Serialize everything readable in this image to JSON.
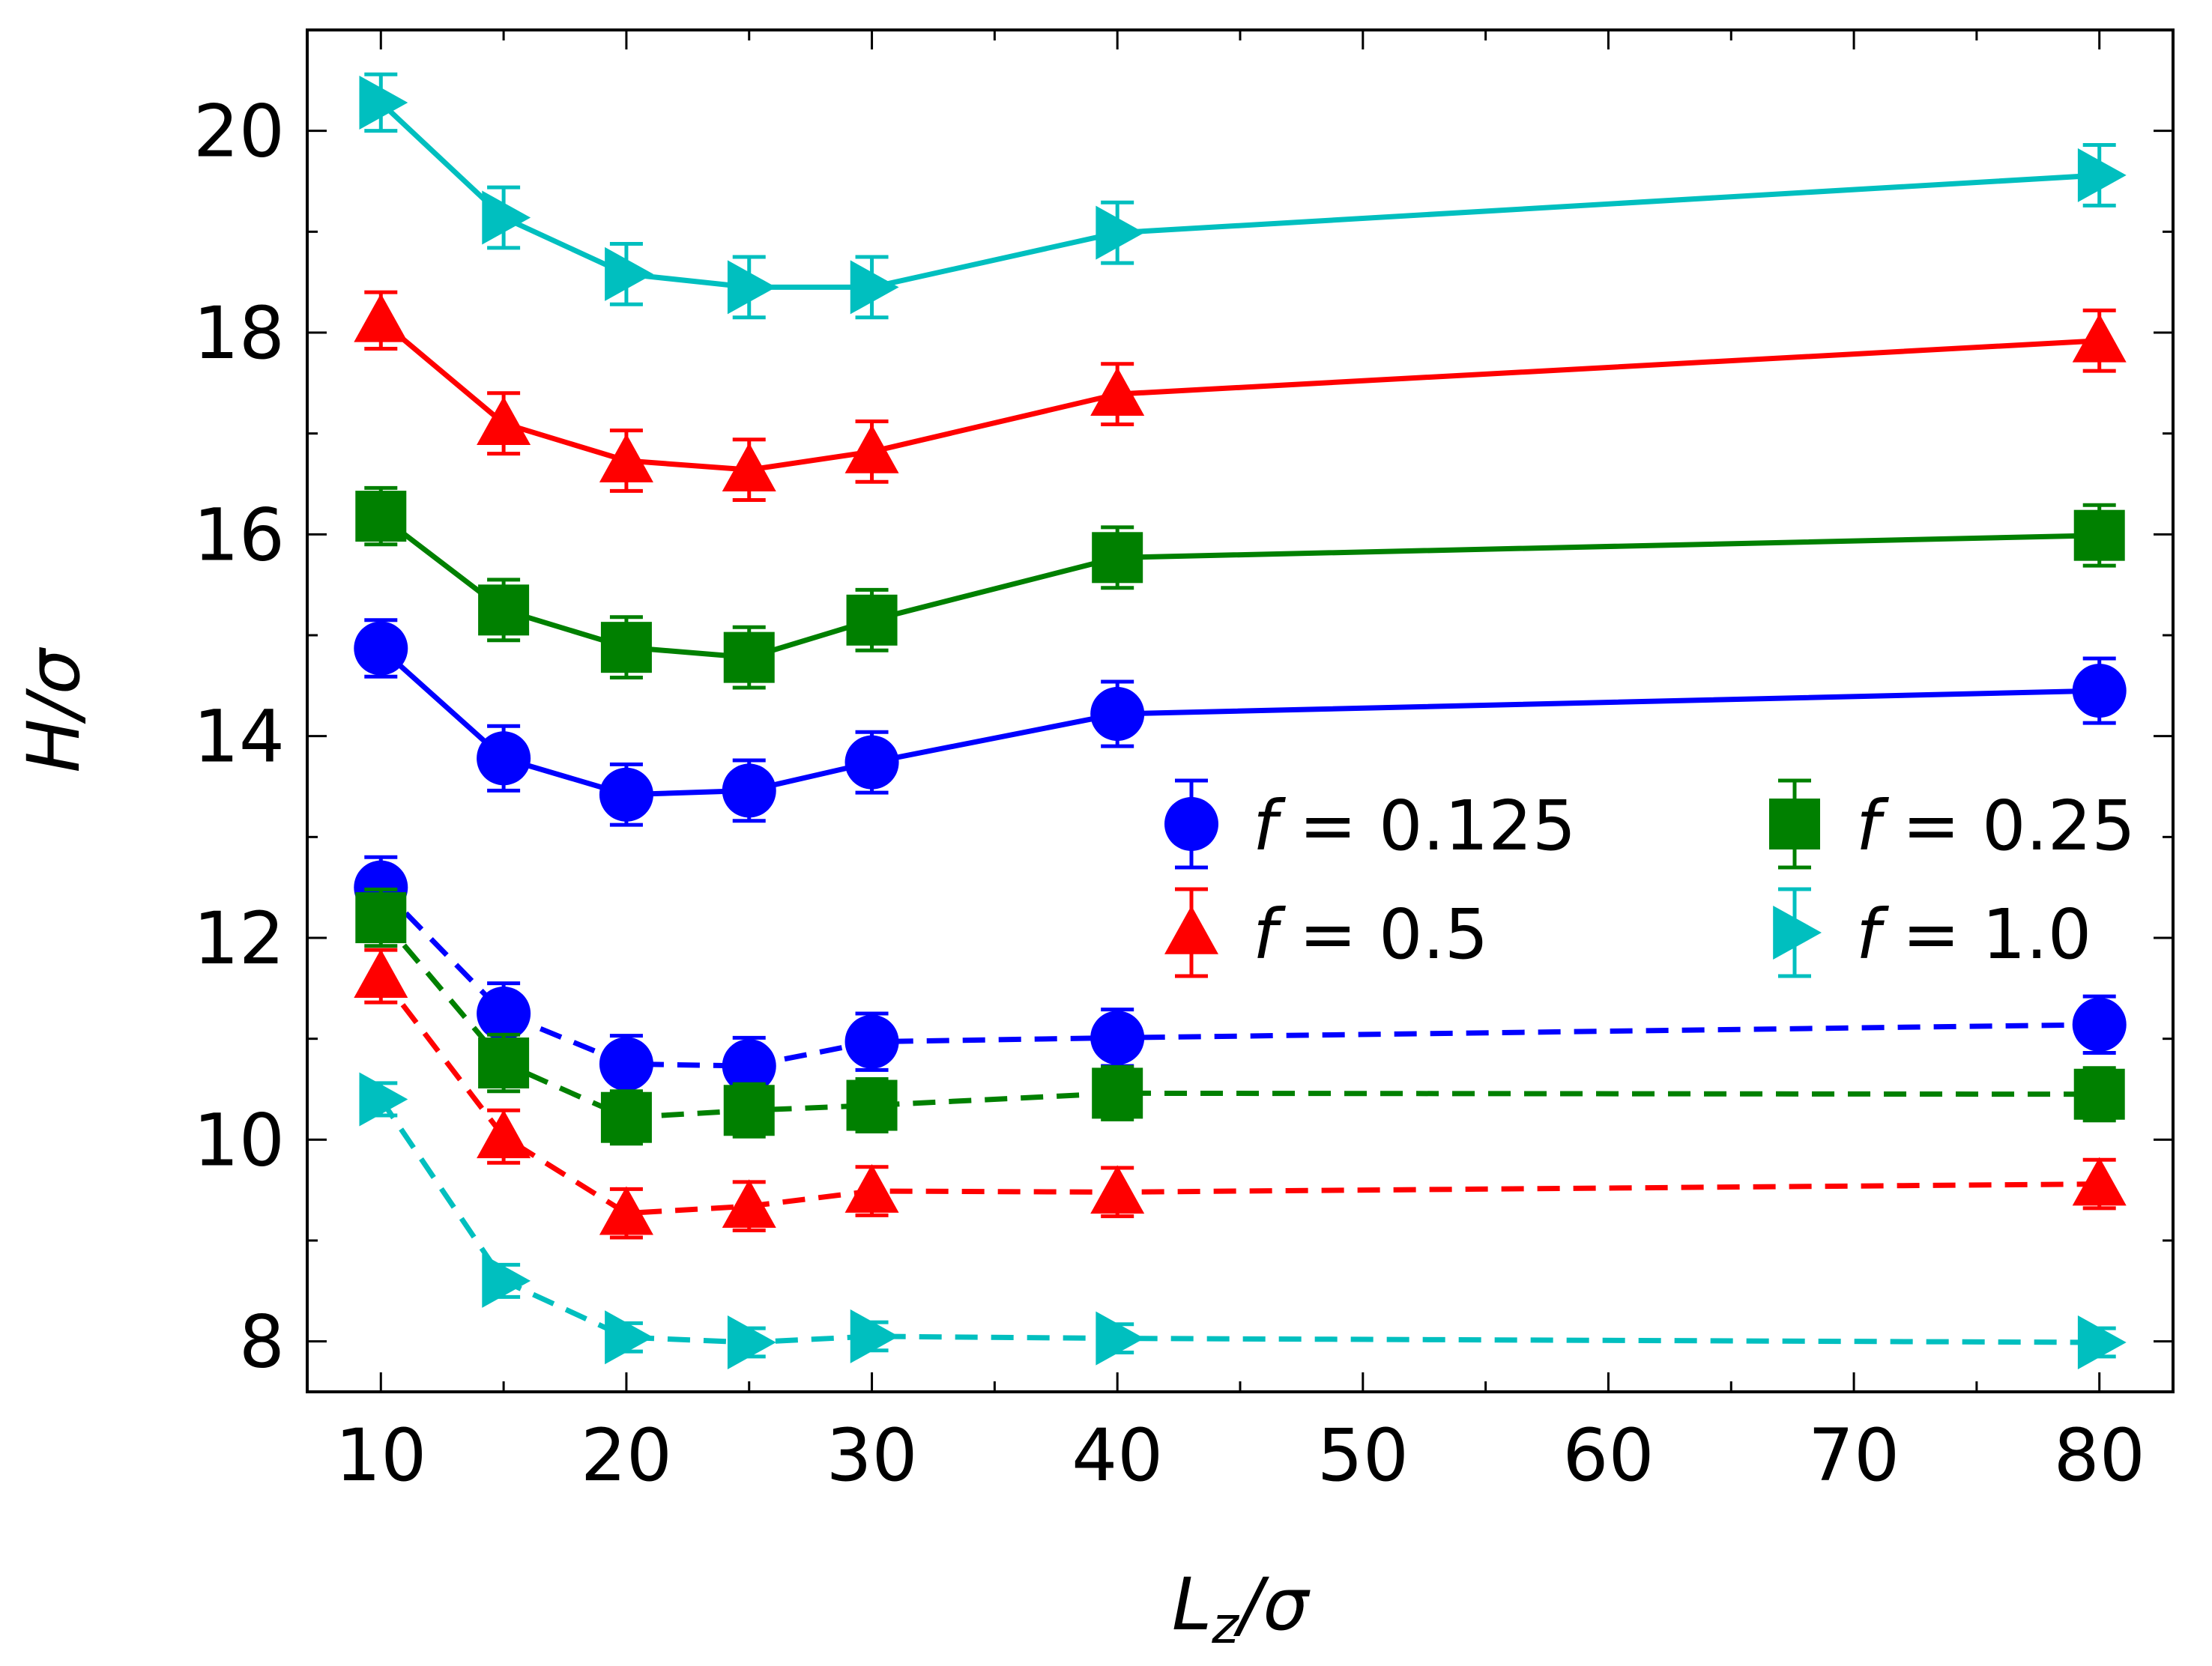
{
  "chart_data": {
    "type": "line",
    "xlabel_main": "L",
    "xlabel_sub": "z",
    "xlabel_rest": "/σ",
    "ylabel": "H/σ",
    "xlim": [
      7,
      83
    ],
    "ylim": [
      7.5,
      21
    ],
    "xticks": [
      10,
      20,
      30,
      40,
      50,
      60,
      70,
      80
    ],
    "yticks": [
      8,
      10,
      12,
      14,
      16,
      18,
      20
    ],
    "x": [
      10,
      15,
      20,
      25,
      30,
      40,
      80
    ],
    "series": [
      {
        "name": "f = 0.125",
        "legend_var": "f",
        "legend_value": "= 0.125",
        "color": "#0000ff",
        "marker": "circle",
        "line": "solid",
        "values": [
          14.87,
          13.78,
          13.42,
          13.46,
          13.74,
          14.22,
          14.45
        ],
        "errors": [
          0.28,
          0.32,
          0.3,
          0.3,
          0.3,
          0.32,
          0.32
        ]
      },
      {
        "name": "f = 0.25",
        "legend_var": "f",
        "legend_value": "= 0.25",
        "color": "#008000",
        "marker": "square",
        "line": "solid",
        "values": [
          16.18,
          15.25,
          14.88,
          14.78,
          15.15,
          15.77,
          15.99
        ],
        "errors": [
          0.28,
          0.3,
          0.3,
          0.3,
          0.3,
          0.3,
          0.3
        ]
      },
      {
        "name": "f = 0.5",
        "legend_var": "f",
        "legend_value": "= 0.5",
        "color": "#ff0000",
        "marker": "triangle-up",
        "line": "solid",
        "values": [
          18.12,
          17.1,
          16.73,
          16.64,
          16.82,
          17.39,
          17.92
        ],
        "errors": [
          0.28,
          0.3,
          0.3,
          0.3,
          0.3,
          0.3,
          0.3
        ]
      },
      {
        "name": "f = 1.0",
        "legend_var": "f",
        "legend_value": "= 1.0",
        "color": "#00bfbf",
        "marker": "triangle-right",
        "line": "solid",
        "values": [
          20.28,
          19.14,
          18.58,
          18.45,
          18.45,
          18.99,
          19.56
        ],
        "errors": [
          0.28,
          0.3,
          0.3,
          0.3,
          0.3,
          0.3,
          0.3
        ]
      },
      {
        "name": "f = 0.125 (dashed)",
        "color": "#0000ff",
        "marker": "circle",
        "line": "dashed",
        "values": [
          12.5,
          11.25,
          10.75,
          10.73,
          10.97,
          11.01,
          11.14
        ],
        "errors": [
          0.3,
          0.3,
          0.28,
          0.28,
          0.28,
          0.28,
          0.28
        ]
      },
      {
        "name": "f = 0.25 (dashed)",
        "color": "#008000",
        "marker": "square",
        "line": "dashed",
        "values": [
          12.2,
          10.76,
          10.22,
          10.29,
          10.34,
          10.46,
          10.45
        ],
        "errors": [
          0.28,
          0.28,
          0.26,
          0.26,
          0.26,
          0.26,
          0.26
        ]
      },
      {
        "name": "f = 0.5 (dashed)",
        "color": "#ff0000",
        "marker": "triangle-up",
        "line": "dashed",
        "values": [
          11.62,
          10.03,
          9.27,
          9.34,
          9.49,
          9.48,
          9.56
        ],
        "errors": [
          0.26,
          0.26,
          0.24,
          0.24,
          0.24,
          0.24,
          0.24
        ]
      },
      {
        "name": "f = 1.0 (dashed)",
        "color": "#00bfbf",
        "marker": "triangle-right",
        "line": "dashed",
        "values": [
          10.4,
          8.6,
          8.04,
          7.99,
          8.05,
          8.03,
          7.99
        ],
        "errors": [
          0.16,
          0.16,
          0.14,
          0.14,
          0.14,
          0.14,
          0.14
        ]
      }
    ],
    "legend": {
      "placement": "center-right",
      "columns": 2,
      "order": [
        0,
        2,
        1,
        3
      ]
    }
  }
}
